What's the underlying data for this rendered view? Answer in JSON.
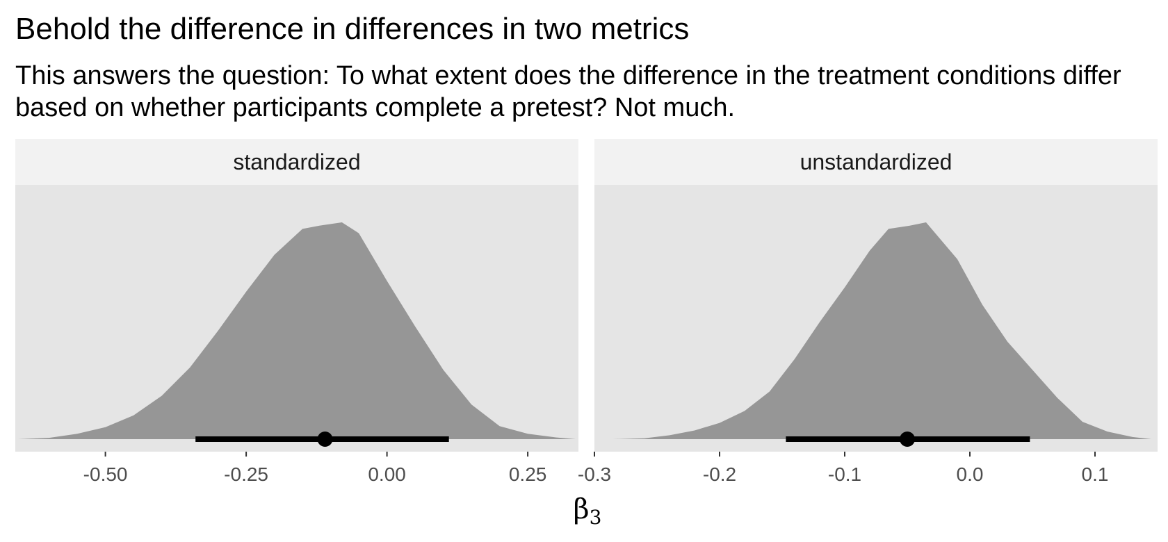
{
  "title": "Behold the difference in differences in two metrics",
  "subtitle": "This answers the question: To what extent does the difference in the treatment conditions differ based on whether participants complete a pretest? Not much.",
  "xlabel_symbol": "β",
  "xlabel_subscript": "3",
  "colors": {
    "panel_background": "#e5e5e5",
    "strip_background": "#f2f2f2",
    "density_fill": "#969696",
    "interval": "#000000",
    "tick_label": "#4d4d4d"
  },
  "chart_data": [
    {
      "type": "area",
      "facet": "standardized",
      "xlim": [
        -0.66,
        0.34
      ],
      "ylim": [
        0,
        1.05
      ],
      "x_ticks": [
        -0.5,
        -0.25,
        0.0,
        0.25
      ],
      "x_tick_labels": [
        "-0.50",
        "-0.25",
        "0.00",
        "0.25"
      ],
      "density": {
        "x": [
          -0.655,
          -0.6,
          -0.55,
          -0.5,
          -0.45,
          -0.4,
          -0.35,
          -0.3,
          -0.25,
          -0.2,
          -0.15,
          -0.12,
          -0.08,
          -0.05,
          0.0,
          0.05,
          0.1,
          0.15,
          0.2,
          0.25,
          0.3,
          0.335
        ],
        "y": [
          0.0,
          0.006,
          0.025,
          0.055,
          0.11,
          0.2,
          0.33,
          0.5,
          0.68,
          0.85,
          0.97,
          0.985,
          1.0,
          0.95,
          0.73,
          0.52,
          0.32,
          0.16,
          0.06,
          0.025,
          0.008,
          0.0
        ]
      },
      "point_estimate": -0.11,
      "interval": [
        -0.34,
        0.11
      ]
    },
    {
      "type": "area",
      "facet": "unstandardized",
      "xlim": [
        -0.3,
        0.15
      ],
      "ylim": [
        0,
        1.05
      ],
      "x_ticks": [
        -0.3,
        -0.2,
        -0.1,
        0.0,
        0.1
      ],
      "x_tick_labels": [
        "-0.3",
        "-0.2",
        "-0.1",
        "0.0",
        "0.1"
      ],
      "density": {
        "x": [
          -0.285,
          -0.26,
          -0.24,
          -0.22,
          -0.2,
          -0.18,
          -0.16,
          -0.14,
          -0.12,
          -0.1,
          -0.08,
          -0.065,
          -0.048,
          -0.035,
          -0.01,
          0.01,
          0.03,
          0.05,
          0.07,
          0.09,
          0.11,
          0.13,
          0.145
        ],
        "y": [
          0.0,
          0.004,
          0.018,
          0.04,
          0.075,
          0.13,
          0.22,
          0.37,
          0.54,
          0.7,
          0.87,
          0.97,
          0.985,
          1.0,
          0.83,
          0.62,
          0.45,
          0.32,
          0.19,
          0.08,
          0.035,
          0.01,
          0.0
        ]
      },
      "point_estimate": -0.05,
      "interval": [
        -0.147,
        0.048
      ]
    }
  ]
}
